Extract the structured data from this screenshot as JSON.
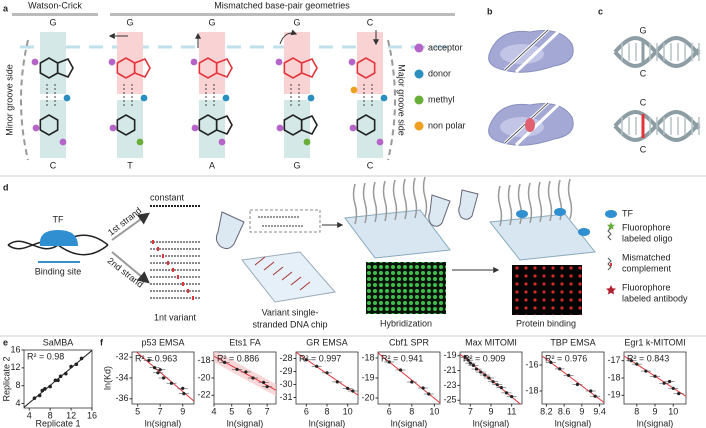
{
  "panel_a": {
    "label": "a",
    "watson_crick": "Watson-Crick",
    "mismatched": "Mismatched base-pair geometries",
    "top_bases": [
      "G",
      "G",
      "G",
      "G",
      "C"
    ],
    "bottom_bases": [
      "C",
      "T",
      "A",
      "G",
      "C"
    ],
    "legend": [
      "acceptor",
      "donor",
      "methyl",
      "non polar"
    ],
    "minor": "Minor groove side",
    "major": "Major groove side"
  },
  "panel_b": {
    "label": "b"
  },
  "panel_c": {
    "label": "c",
    "top_bases": [
      "G",
      "C"
    ],
    "bottom_bases": [
      "C",
      "C"
    ]
  },
  "panel_d": {
    "label": "d",
    "tf": "TF",
    "binding_site": "Binding site",
    "first_strand": "1st strand",
    "second_strand": "2nd strand",
    "constant": "constant",
    "variant": "1nt variant",
    "chip": [
      "Variant single-",
      "stranded DNA chip"
    ],
    "hybridization": "Hybridization",
    "protein_binding": "Protein binding",
    "legend": [
      [
        "TF"
      ],
      [
        "Fluorophore",
        "labeled oligo"
      ],
      [
        "Mismatched",
        "complement"
      ],
      [
        "Fluorophore",
        "labeled antibody"
      ]
    ]
  },
  "panel_e": {
    "label": "e",
    "title": "SaMBA",
    "r2": "R² = 0.98",
    "xlabel": "Replicate 1",
    "ylabel": "Replicate 2",
    "xlim": [
      3,
      16
    ],
    "ylim": [
      3,
      16
    ],
    "xticks": [
      4,
      8,
      12,
      16
    ],
    "yticks": [
      4,
      8,
      12,
      16
    ],
    "points": {
      "x": [
        5,
        6,
        6.5,
        7,
        8,
        9,
        9.5,
        10,
        11,
        12,
        13,
        14
      ],
      "y": [
        5.2,
        5.8,
        6.9,
        7.3,
        7.8,
        9.2,
        9.2,
        10.1,
        10.7,
        12.3,
        12.8,
        14.1
      ]
    }
  },
  "panel_f": {
    "label": "f",
    "ylabel": "ln(Kd)",
    "xlabel": "ln(signal)",
    "plots": [
      {
        "title": "p53 EMSA",
        "r2": "R² = 0.963",
        "xlim": [
          4.5,
          10
        ],
        "ylim": [
          -36.5,
          -31.5
        ],
        "xticks": [
          5,
          7,
          9
        ],
        "yticks": [
          -32,
          -34,
          -36
        ],
        "points": {
          "x": [
            6,
            6.5,
            6.8,
            7,
            7.3,
            8,
            9,
            9.1
          ],
          "y": [
            -32.3,
            -33,
            -33.5,
            -33.2,
            -34,
            -34.5,
            -35,
            -35.5
          ]
        }
      },
      {
        "title": "Ets1 FA",
        "r2": "R² = 0.886",
        "xlim": [
          4,
          7.5
        ],
        "ylim": [
          -23,
          -17
        ],
        "xticks": [
          4,
          5,
          6,
          7
        ],
        "yticks": [
          -18,
          -20,
          -22
        ],
        "points": {
          "x": [
            4.6,
            5.3,
            5.8,
            6.2,
            6.8,
            7
          ],
          "y": [
            -18.2,
            -19,
            -19.3,
            -20,
            -20.5,
            -21
          ]
        }
      },
      {
        "title": "GR EMSA",
        "r2": "R² = 0.997",
        "xlim": [
          5,
          11
        ],
        "ylim": [
          -31.5,
          -27.5
        ],
        "xticks": [
          6,
          8,
          10
        ],
        "yticks": [
          -28,
          -29,
          -30,
          -31
        ],
        "points": {
          "x": [
            6,
            7,
            8,
            9,
            10,
            10.5
          ],
          "y": [
            -28.1,
            -28.6,
            -29.1,
            -29.8,
            -30.3,
            -30.5
          ]
        }
      },
      {
        "title": "Cbf1 SPR",
        "r2": "R² = 0.941",
        "xlim": [
          5,
          10.5
        ],
        "ylim": [
          -20.3,
          -17.7
        ],
        "xticks": [
          6,
          8,
          10
        ],
        "yticks": [
          -18,
          -19,
          -20
        ],
        "points": {
          "x": [
            6,
            7,
            8,
            9,
            9.5
          ],
          "y": [
            -18.2,
            -18.6,
            -19.2,
            -19.5,
            -19.8
          ]
        }
      },
      {
        "title": "Max  MITOMI",
        "r2": "R² = 0.909",
        "xlim": [
          6,
          12
        ],
        "ylim": [
          -25.5,
          -18.5
        ],
        "xticks": [
          7,
          9,
          11
        ],
        "yticks": [
          -19,
          -21,
          -23,
          -25
        ],
        "points": {
          "x": [
            6.5,
            6.8,
            7,
            7.3,
            7.6,
            8,
            8.4,
            8.8,
            9.2,
            9.6,
            10,
            10.5,
            11
          ],
          "y": [
            -19.2,
            -19.6,
            -20,
            -20.3,
            -20.8,
            -21.2,
            -21.6,
            -22,
            -22.5,
            -22.9,
            -23.3,
            -24,
            -24.5
          ]
        }
      },
      {
        "title": "TBP  EMSA",
        "r2": "R² = 0.976",
        "xlim": [
          8.1,
          9.5
        ],
        "ylim": [
          -19,
          -15
        ],
        "xticks": [
          8.2,
          8.6,
          9,
          9.4
        ],
        "yticks": [
          -16,
          -18
        ],
        "points": {
          "x": [
            8.3,
            8.5,
            8.7,
            8.9,
            9.2,
            9.3
          ],
          "y": [
            -15.8,
            -16.3,
            -16.8,
            -17.5,
            -18,
            -18.4
          ]
        }
      },
      {
        "title": "Egr1 k-MITOMI",
        "r2": "R² = 0.843",
        "xlim": [
          7.3,
          10.7
        ],
        "ylim": [
          -19.5,
          -16.5
        ],
        "xticks": [
          8,
          9,
          10
        ],
        "yticks": [
          -17,
          -18,
          -19
        ],
        "points": {
          "x": [
            7.7,
            8,
            8.5,
            9,
            9.5,
            9.8,
            10,
            10.3
          ],
          "y": [
            -17,
            -17.2,
            -17.6,
            -17.9,
            -18.3,
            -18.2,
            -18.6,
            -18.9
          ]
        }
      }
    ]
  }
}
